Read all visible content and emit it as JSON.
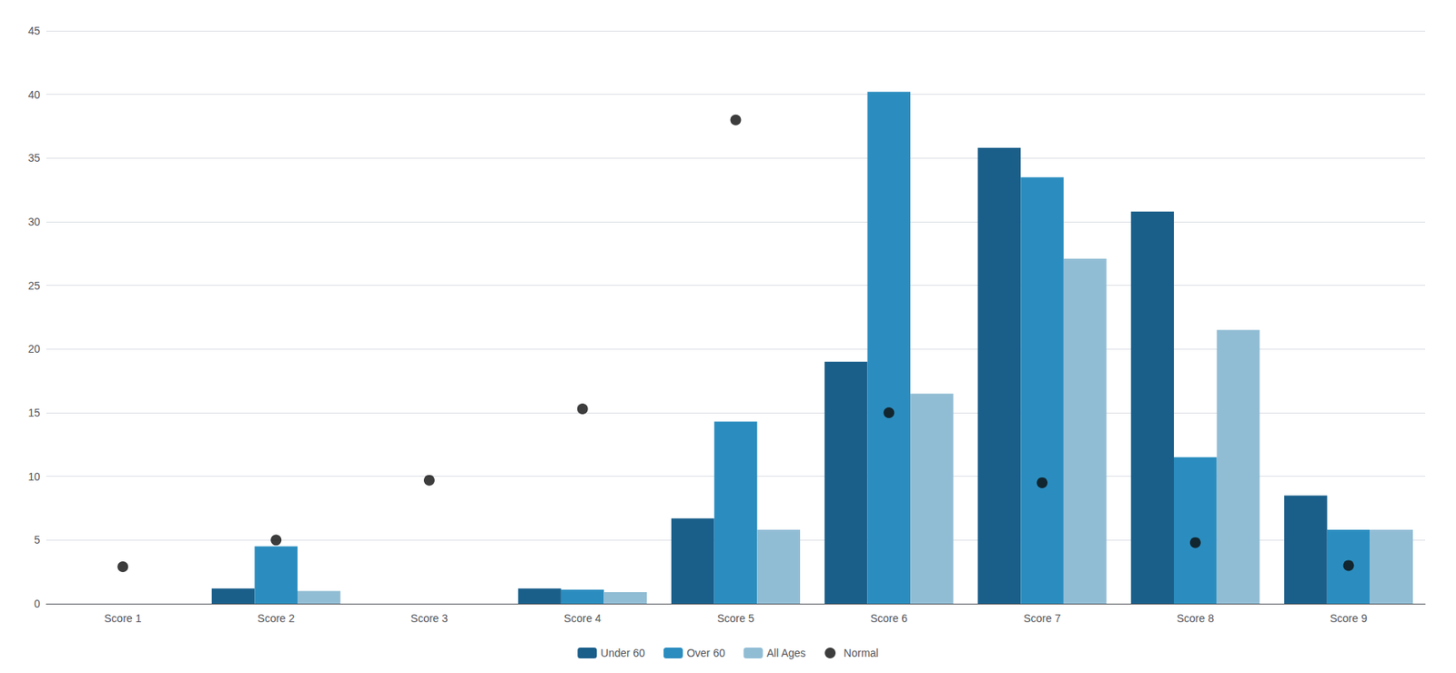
{
  "chart_data": {
    "type": "bar",
    "categories": [
      "Score 1",
      "Score 2",
      "Score 3",
      "Score 4",
      "Score 5",
      "Score 6",
      "Score 7",
      "Score 8",
      "Score 9"
    ],
    "series": [
      {
        "name": "Under 60",
        "color": "#1a5f8a",
        "values": [
          0.0,
          1.2,
          0.0,
          1.2,
          6.7,
          19.0,
          35.8,
          30.8,
          8.5
        ]
      },
      {
        "name": "Over 60",
        "color": "#2b8dbf",
        "values": [
          0.0,
          4.5,
          0.0,
          1.1,
          14.3,
          40.2,
          33.5,
          11.5,
          5.8
        ]
      },
      {
        "name": "All Ages",
        "color": "#91bdd4",
        "values": [
          0.0,
          1.0,
          0.0,
          0.9,
          5.8,
          16.5,
          27.1,
          21.5,
          5.8
        ]
      },
      {
        "name": "Normal",
        "type": "scatter",
        "marker": "circle",
        "color": "#0d0d0d",
        "values": [
          2.9,
          5.0,
          9.7,
          15.3,
          38.0,
          15.0,
          9.5,
          4.8,
          3.0
        ]
      }
    ],
    "ylim": [
      0,
      45
    ],
    "yticks": [
      0,
      5,
      10,
      15,
      20,
      25,
      30,
      35,
      40,
      45
    ],
    "grid": true,
    "legend": "bottom"
  }
}
